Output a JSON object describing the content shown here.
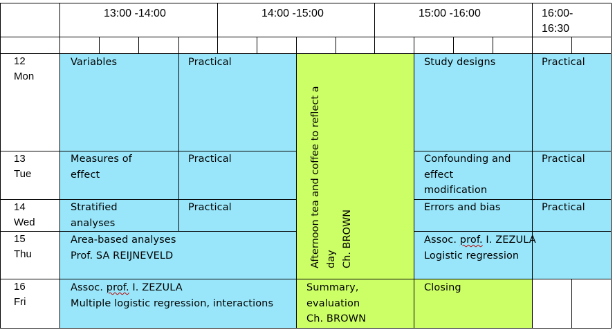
{
  "header": {
    "slot1": "13:00 -14:00",
    "slot2": "14:00 -15:00",
    "slot3": "15:00 -16:00",
    "slot4_line1": "16:00-",
    "slot4_line2": "16:30"
  },
  "days": [
    {
      "num": "12",
      "name": "Mon"
    },
    {
      "num": "13",
      "name": "Tue"
    },
    {
      "num": "14",
      "name": "Wed"
    },
    {
      "num": "15",
      "name": "Thu"
    },
    {
      "num": "16",
      "name": "Fri"
    }
  ],
  "cells": {
    "mon_variables": "Variables",
    "mon_practical1": "Practical",
    "mon_study": "Study designs",
    "mon_practical2": "Practical",
    "tue_measures_l1": "Measures of",
    "tue_measures_l2": "effect",
    "tue_practical1": "Practical",
    "tue_confounding_l1": "Confounding and",
    "tue_confounding_l2": "effect",
    "tue_confounding_l3": "modification",
    "tue_practical2": "Practical",
    "wed_stratified_l1": "Stratified",
    "wed_stratified_l2": "analyses",
    "wed_practical1": "Practical",
    "wed_errors": "Errors and bias",
    "wed_practical2": "Practical",
    "thu_area_l1": "Area-based analyses",
    "thu_area_l2": "Prof. SA REIJNEVELD",
    "thu_assoc_pre": "Assoc. ",
    "thu_assoc_prof": "prof.",
    "thu_assoc_post": " I. ZEZULA",
    "thu_logistic": "Logistic regression",
    "fri_assoc_pre": "Assoc. ",
    "fri_assoc_prof": "prof.",
    "fri_assoc_post": " I. ZEZULA",
    "fri_multiple": "Multiple logistic regression, interactions",
    "fri_summary_l1": "Summary,",
    "fri_summary_l2": "evaluation",
    "fri_summary_l3": "Ch. BROWN",
    "fri_closing": "Closing",
    "tea_l1": "Afternoon tea and coffee to reflect a",
    "tea_l2": "day",
    "tea_l3": "Ch. BROWN"
  },
  "colors": {
    "session": "#99e6fa",
    "break": "#ccff66"
  }
}
